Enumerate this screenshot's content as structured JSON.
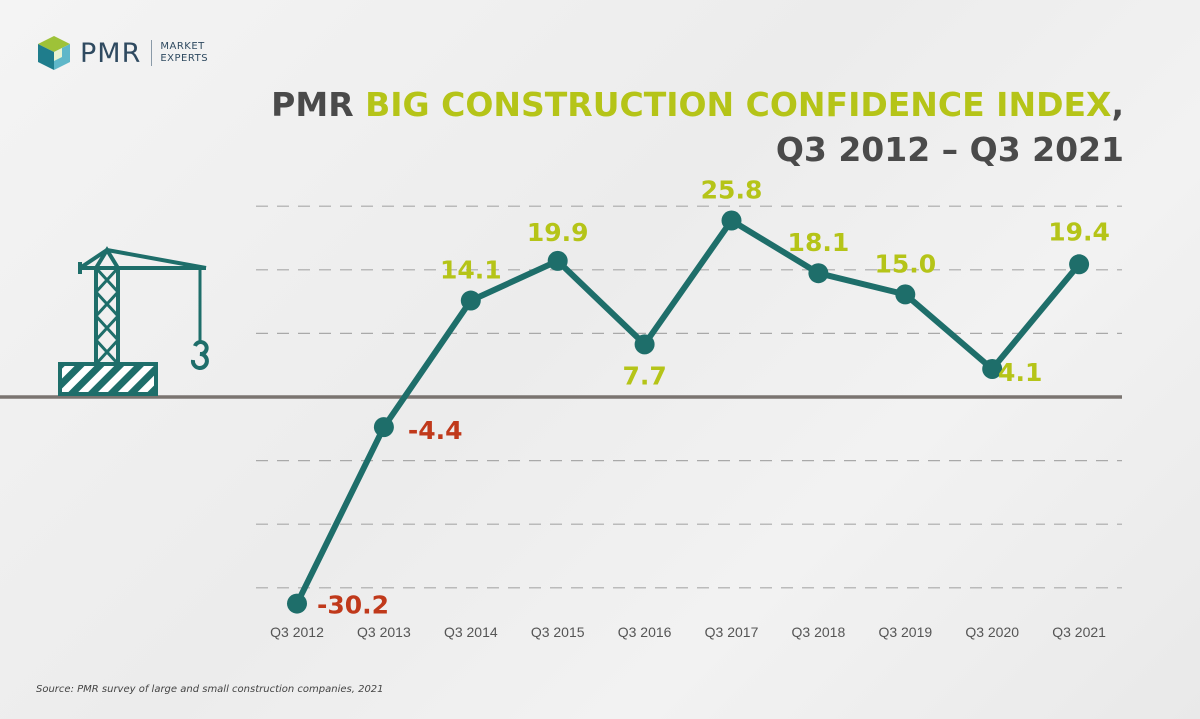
{
  "logo": {
    "name": "PMR",
    "tagline_1": "MARKET",
    "tagline_2": "EXPERTS"
  },
  "title": {
    "prefix": "PMR",
    "accent": "BIG CONSTRUCTION CONFIDENCE INDEX",
    "suffix": ",",
    "line2": "Q3 2012 – Q3 2021"
  },
  "source": "Source: PMR survey of large and small construction companies, 2021",
  "colors": {
    "line": "#1e6e6a",
    "positive_label": "#b5c418",
    "negative_label": "#c0391b",
    "zero_line": "#7a7470",
    "grid": "#a9a9a9"
  },
  "chart_data": {
    "type": "line",
    "categories": [
      "Q3 2012",
      "Q3 2013",
      "Q3 2014",
      "Q3 2015",
      "Q3 2016",
      "Q3 2017",
      "Q3 2018",
      "Q3 2019",
      "Q3 2020",
      "Q3 2021"
    ],
    "values": [
      -30.2,
      -4.4,
      14.1,
      19.9,
      7.7,
      25.8,
      18.1,
      15.0,
      4.1,
      19.4
    ],
    "data_labels": [
      "-30.2",
      "-4.4",
      "14.1",
      "19.9",
      "7.7",
      "25.8",
      "18.1",
      "15.0",
      "4.1",
      "19.4"
    ],
    "ylim": [
      -30.2,
      25.8
    ],
    "grid": true,
    "legend": "none"
  }
}
